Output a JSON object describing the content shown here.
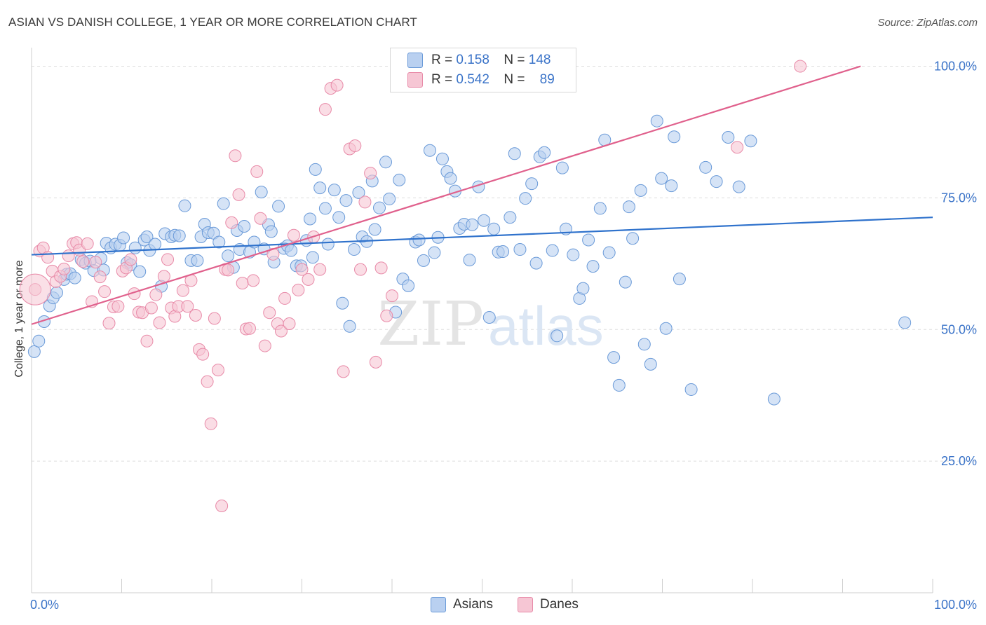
{
  "title": "ASIAN VS DANISH COLLEGE, 1 YEAR OR MORE CORRELATION CHART",
  "source": "Source: ZipAtlas.com",
  "watermark": {
    "zip": "ZIP",
    "atlas": "atlas"
  },
  "legend_top": {
    "asians": {
      "r_label": "R =",
      "r_value": "0.158",
      "n_label": "N =",
      "n_value": "148"
    },
    "danes": {
      "r_label": "R =",
      "r_value": "0.542",
      "n_label": "N =",
      "n_value": "89"
    }
  },
  "legend_bottom": {
    "asians": "Asians",
    "danes": "Danes"
  },
  "colors": {
    "asian_fill": "#b9d0f0",
    "asian_stroke": "#6a9ad8",
    "asian_line": "#2f72cc",
    "dane_fill": "#f6c6d4",
    "dane_stroke": "#e88aa8",
    "dane_line": "#e0608c",
    "tick_label": "#3a73c8",
    "grid": "#dddddd"
  },
  "chart_data": {
    "type": "scatter",
    "title": "ASIAN VS DANISH COLLEGE, 1 YEAR OR MORE CORRELATION CHART",
    "xlabel": "",
    "ylabel": "College, 1 year or more",
    "xlim": [
      0,
      100
    ],
    "ylim": [
      0,
      103
    ],
    "x_tick_labels": [
      "0.0%",
      "100.0%"
    ],
    "y_ticks": [
      25,
      50,
      75,
      100
    ],
    "y_tick_labels": [
      "25.0%",
      "50.0%",
      "75.0%",
      "100.0%"
    ],
    "grid": true,
    "series": [
      {
        "name": "Asians",
        "trend": [
          [
            0,
            64.2
          ],
          [
            100,
            71.3
          ]
        ],
        "points": [
          [
            0.3,
            45.8
          ],
          [
            0.8,
            47.8
          ],
          [
            1.4,
            51.5
          ],
          [
            2.0,
            54.5
          ],
          [
            2.4,
            56.0
          ],
          [
            2.8,
            57.0
          ],
          [
            3.6,
            59.5
          ],
          [
            3.9,
            60.5
          ],
          [
            4.3,
            60.6
          ],
          [
            4.8,
            59.8
          ],
          [
            5.5,
            63.3
          ],
          [
            6.0,
            62.6
          ],
          [
            6.5,
            63.0
          ],
          [
            6.9,
            61.2
          ],
          [
            7.7,
            63.5
          ],
          [
            8.0,
            61.3
          ],
          [
            8.3,
            66.4
          ],
          [
            8.8,
            65.5
          ],
          [
            9.3,
            66.2
          ],
          [
            9.8,
            66.0
          ],
          [
            10.2,
            67.4
          ],
          [
            10.6,
            62.7
          ],
          [
            11.0,
            62.3
          ],
          [
            11.5,
            65.5
          ],
          [
            12.0,
            61.0
          ],
          [
            12.5,
            67.0
          ],
          [
            12.8,
            67.6
          ],
          [
            13.1,
            65.0
          ],
          [
            13.7,
            66.2
          ],
          [
            14.4,
            58.2
          ],
          [
            14.8,
            68.2
          ],
          [
            15.5,
            67.6
          ],
          [
            15.9,
            67.9
          ],
          [
            16.4,
            67.8
          ],
          [
            17.0,
            73.5
          ],
          [
            17.7,
            63.1
          ],
          [
            18.4,
            63.1
          ],
          [
            18.8,
            67.6
          ],
          [
            19.2,
            70.0
          ],
          [
            19.6,
            68.4
          ],
          [
            20.2,
            68.3
          ],
          [
            20.8,
            66.6
          ],
          [
            21.3,
            73.9
          ],
          [
            21.8,
            64.0
          ],
          [
            22.4,
            61.8
          ],
          [
            22.8,
            68.8
          ],
          [
            23.1,
            65.2
          ],
          [
            23.6,
            69.6
          ],
          [
            24.2,
            64.7
          ],
          [
            24.7,
            66.6
          ],
          [
            25.5,
            76.1
          ],
          [
            25.8,
            65.3
          ],
          [
            26.3,
            69.9
          ],
          [
            26.6,
            68.6
          ],
          [
            26.9,
            62.8
          ],
          [
            27.4,
            73.4
          ],
          [
            28.0,
            65.4
          ],
          [
            28.4,
            65.9
          ],
          [
            28.8,
            65.0
          ],
          [
            29.4,
            62.1
          ],
          [
            29.9,
            62.1
          ],
          [
            30.5,
            66.9
          ],
          [
            30.9,
            71.0
          ],
          [
            31.2,
            63.7
          ],
          [
            31.5,
            80.4
          ],
          [
            32.0,
            76.9
          ],
          [
            32.6,
            73.0
          ],
          [
            32.9,
            66.2
          ],
          [
            33.6,
            76.5
          ],
          [
            34.1,
            71.3
          ],
          [
            34.5,
            55.0
          ],
          [
            34.9,
            74.5
          ],
          [
            35.3,
            50.6
          ],
          [
            35.8,
            65.2
          ],
          [
            36.3,
            76.0
          ],
          [
            36.7,
            67.6
          ],
          [
            37.2,
            66.7
          ],
          [
            37.8,
            78.2
          ],
          [
            38.1,
            69.0
          ],
          [
            38.6,
            73.1
          ],
          [
            39.3,
            81.8
          ],
          [
            39.7,
            74.8
          ],
          [
            40.4,
            53.3
          ],
          [
            40.8,
            78.4
          ],
          [
            41.2,
            59.6
          ],
          [
            41.8,
            58.3
          ],
          [
            42.6,
            66.6
          ],
          [
            43.0,
            67.0
          ],
          [
            43.5,
            63.1
          ],
          [
            44.2,
            84.0
          ],
          [
            44.7,
            64.6
          ],
          [
            45.1,
            67.5
          ],
          [
            45.6,
            82.4
          ],
          [
            46.1,
            80.0
          ],
          [
            46.5,
            78.7
          ],
          [
            47.0,
            76.3
          ],
          [
            47.5,
            69.2
          ],
          [
            48.0,
            70.0
          ],
          [
            48.6,
            63.2
          ],
          [
            48.9,
            69.9
          ],
          [
            49.6,
            77.1
          ],
          [
            50.2,
            70.7
          ],
          [
            50.8,
            52.3
          ],
          [
            51.3,
            69.1
          ],
          [
            51.8,
            64.7
          ],
          [
            52.3,
            64.8
          ],
          [
            53.1,
            71.3
          ],
          [
            53.6,
            83.4
          ],
          [
            54.2,
            65.2
          ],
          [
            54.8,
            74.9
          ],
          [
            55.5,
            77.7
          ],
          [
            56.0,
            62.6
          ],
          [
            56.4,
            82.8
          ],
          [
            56.9,
            83.6
          ],
          [
            57.8,
            65.0
          ],
          [
            58.3,
            48.8
          ],
          [
            58.9,
            80.7
          ],
          [
            59.3,
            69.1
          ],
          [
            60.1,
            64.2
          ],
          [
            60.8,
            55.9
          ],
          [
            61.2,
            57.8
          ],
          [
            61.8,
            67.0
          ],
          [
            62.3,
            62.0
          ],
          [
            63.1,
            73.0
          ],
          [
            63.6,
            86.0
          ],
          [
            64.1,
            64.6
          ],
          [
            64.6,
            44.7
          ],
          [
            65.2,
            39.4
          ],
          [
            65.9,
            59.0
          ],
          [
            66.3,
            73.3
          ],
          [
            66.7,
            67.3
          ],
          [
            67.6,
            76.4
          ],
          [
            68.0,
            47.2
          ],
          [
            68.7,
            43.4
          ],
          [
            69.4,
            89.6
          ],
          [
            69.9,
            78.7
          ],
          [
            70.4,
            50.2
          ],
          [
            71.0,
            77.3
          ],
          [
            71.3,
            86.6
          ],
          [
            71.9,
            59.6
          ],
          [
            73.2,
            38.6
          ],
          [
            74.8,
            80.8
          ],
          [
            76.0,
            78.1
          ],
          [
            77.3,
            86.5
          ],
          [
            78.5,
            77.1
          ],
          [
            79.8,
            85.8
          ],
          [
            82.4,
            36.8
          ],
          [
            96.9,
            51.3
          ]
        ]
      },
      {
        "name": "Danes",
        "trend": [
          [
            0,
            51.0
          ],
          [
            92,
            100
          ]
        ],
        "points": [
          [
            0.4,
            57.6
          ],
          [
            0.9,
            64.9
          ],
          [
            1.3,
            65.5
          ],
          [
            1.8,
            63.7
          ],
          [
            2.3,
            61.1
          ],
          [
            2.7,
            59.1
          ],
          [
            3.2,
            60.1
          ],
          [
            3.6,
            61.5
          ],
          [
            4.1,
            64.0
          ],
          [
            4.6,
            66.3
          ],
          [
            5.0,
            66.5
          ],
          [
            5.3,
            65.1
          ],
          [
            5.7,
            62.9
          ],
          [
            6.2,
            66.3
          ],
          [
            6.7,
            55.3
          ],
          [
            7.1,
            62.8
          ],
          [
            7.6,
            60.0
          ],
          [
            8.1,
            57.2
          ],
          [
            8.6,
            51.2
          ],
          [
            9.1,
            54.3
          ],
          [
            9.6,
            54.4
          ],
          [
            10.1,
            61.1
          ],
          [
            10.5,
            61.7
          ],
          [
            11.0,
            63.3
          ],
          [
            11.4,
            56.8
          ],
          [
            11.9,
            53.3
          ],
          [
            12.3,
            53.2
          ],
          [
            12.8,
            47.8
          ],
          [
            13.3,
            54.1
          ],
          [
            13.8,
            56.6
          ],
          [
            14.2,
            51.3
          ],
          [
            14.7,
            60.1
          ],
          [
            15.1,
            63.3
          ],
          [
            15.5,
            54.1
          ],
          [
            15.9,
            52.5
          ],
          [
            16.3,
            54.4
          ],
          [
            16.8,
            57.4
          ],
          [
            17.3,
            54.4
          ],
          [
            17.7,
            59.3
          ],
          [
            18.2,
            52.7
          ],
          [
            18.6,
            46.2
          ],
          [
            19.0,
            45.3
          ],
          [
            19.5,
            40.1
          ],
          [
            19.9,
            32.1
          ],
          [
            20.3,
            52.1
          ],
          [
            20.7,
            42.3
          ],
          [
            21.1,
            16.5
          ],
          [
            21.5,
            61.4
          ],
          [
            21.8,
            61.3
          ],
          [
            22.2,
            70.3
          ],
          [
            22.6,
            83.0
          ],
          [
            23.0,
            75.6
          ],
          [
            23.4,
            58.8
          ],
          [
            23.8,
            50.1
          ],
          [
            24.2,
            50.2
          ],
          [
            24.6,
            59.3
          ],
          [
            25.0,
            80.0
          ],
          [
            25.4,
            71.1
          ],
          [
            25.9,
            46.9
          ],
          [
            26.4,
            53.2
          ],
          [
            26.8,
            64.3
          ],
          [
            27.3,
            51.1
          ],
          [
            27.7,
            49.7
          ],
          [
            28.1,
            55.9
          ],
          [
            28.6,
            51.1
          ],
          [
            29.1,
            67.9
          ],
          [
            29.6,
            57.5
          ],
          [
            30.0,
            61.4
          ],
          [
            30.7,
            59.5
          ],
          [
            31.3,
            67.6
          ],
          [
            32.0,
            61.4
          ],
          [
            32.6,
            91.8
          ],
          [
            33.2,
            95.8
          ],
          [
            33.9,
            96.4
          ],
          [
            34.6,
            42.0
          ],
          [
            35.3,
            84.3
          ],
          [
            35.9,
            84.9
          ],
          [
            36.5,
            61.4
          ],
          [
            37.0,
            74.2
          ],
          [
            37.6,
            79.7
          ],
          [
            38.2,
            43.8
          ],
          [
            38.8,
            61.7
          ],
          [
            39.4,
            52.6
          ],
          [
            40.0,
            56.4
          ],
          [
            47.1,
            100.0
          ],
          [
            49.5,
            100.0
          ],
          [
            51.5,
            100.0
          ],
          [
            78.3,
            84.6
          ],
          [
            85.3,
            100.0
          ]
        ]
      }
    ]
  }
}
